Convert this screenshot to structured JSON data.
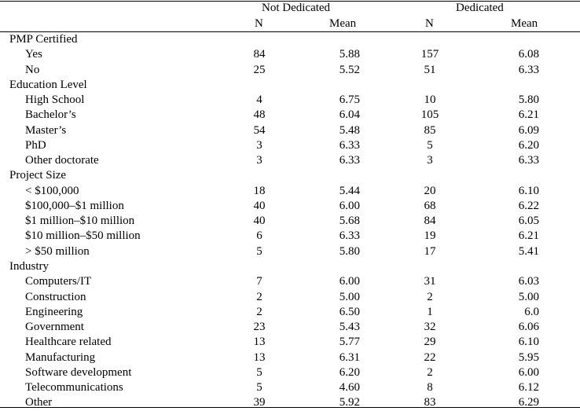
{
  "header": {
    "group_not_dedicated": "Not Dedicated",
    "group_dedicated": "Dedicated",
    "n_label": "N",
    "mean_label": "Mean"
  },
  "rows": [
    {
      "label": "PMP Certified",
      "type": "section"
    },
    {
      "label": "Yes",
      "type": "sub",
      "n1": "84",
      "m1": "5.88",
      "n2": "157",
      "m2": "6.08"
    },
    {
      "label": "No",
      "type": "sub",
      "n1": "25",
      "m1": "5.52",
      "n2": "51",
      "m2": "6.33"
    },
    {
      "label": "Education Level",
      "type": "section"
    },
    {
      "label": "High School",
      "type": "sub",
      "n1": "4",
      "m1": "6.75",
      "n2": "10",
      "m2": "5.80"
    },
    {
      "label": "Bachelor’s",
      "type": "sub",
      "n1": "48",
      "m1": "6.04",
      "n2": "105",
      "m2": "6.21"
    },
    {
      "label": "Master’s",
      "type": "sub",
      "n1": "54",
      "m1": "5.48",
      "n2": "85",
      "m2": "6.09"
    },
    {
      "label": "PhD",
      "type": "sub",
      "n1": "3",
      "m1": "6.33",
      "n2": "5",
      "m2": "6.20"
    },
    {
      "label": "Other doctorate",
      "type": "sub",
      "n1": "3",
      "m1": "6.33",
      "n2": "3",
      "m2": "6.33"
    },
    {
      "label": "Project Size",
      "type": "section"
    },
    {
      "label": "< $100,000",
      "type": "sub",
      "n1": "18",
      "m1": "5.44",
      "n2": "20",
      "m2": "6.10"
    },
    {
      "label": "$100,000–$1 million",
      "type": "sub",
      "n1": "40",
      "m1": "6.00",
      "n2": "68",
      "m2": "6.22"
    },
    {
      "label": "$1 million–$10 million",
      "type": "sub",
      "n1": "40",
      "m1": "5.68",
      "n2": "84",
      "m2": "6.05"
    },
    {
      "label": "$10 million–$50 million",
      "type": "sub",
      "n1": "6",
      "m1": "6.33",
      "n2": "19",
      "m2": "6.21"
    },
    {
      "label": "> $50 million",
      "type": "sub",
      "n1": "5",
      "m1": "5.80",
      "n2": "17",
      "m2": "5.41"
    },
    {
      "label": "Industry",
      "type": "section"
    },
    {
      "label": "Computers/IT",
      "type": "sub",
      "n1": "7",
      "m1": "6.00",
      "n2": "31",
      "m2": "6.03"
    },
    {
      "label": "Construction",
      "type": "sub",
      "n1": "2",
      "m1": "5.00",
      "n2": "2",
      "m2": "5.00"
    },
    {
      "label": "Engineering",
      "type": "sub",
      "n1": "2",
      "m1": "6.50",
      "n2": "1",
      "m2": "6.0"
    },
    {
      "label": "Government",
      "type": "sub",
      "n1": "23",
      "m1": "5.43",
      "n2": "32",
      "m2": "6.06"
    },
    {
      "label": "Healthcare related",
      "type": "sub",
      "n1": "13",
      "m1": "5.77",
      "n2": "29",
      "m2": "6.10"
    },
    {
      "label": "Manufacturing",
      "type": "sub",
      "n1": "13",
      "m1": "6.31",
      "n2": "22",
      "m2": "5.95"
    },
    {
      "label": "Software development",
      "type": "sub",
      "n1": "5",
      "m1": "6.20",
      "n2": "2",
      "m2": "6.00"
    },
    {
      "label": "Telecommunications",
      "type": "sub",
      "n1": "5",
      "m1": "4.60",
      "n2": "8",
      "m2": "6.12"
    },
    {
      "label": "Other",
      "type": "sub",
      "n1": "39",
      "m1": "5.92",
      "n2": "83",
      "m2": "6.29"
    }
  ]
}
